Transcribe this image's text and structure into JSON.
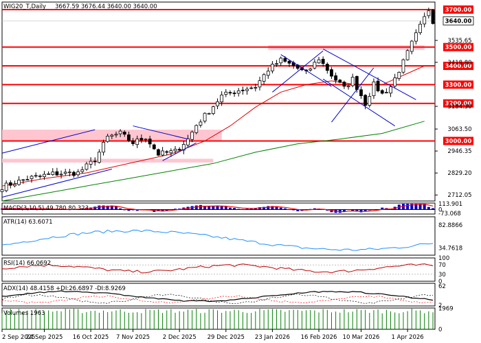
{
  "header": {
    "symbol": "WIG20_T,Daily",
    "ohlc": "3667.59 3676.44 3640.00 3640.00"
  },
  "colors": {
    "level_line": "#ff0000",
    "zone_fill": "#ffc0cb",
    "ma_fast": "#e00000",
    "ma_slow": "#008000",
    "trendline": "#0000cc",
    "macd_hist": "#0000c0",
    "macd_signal": "#ff0000",
    "atr_line": "#1e90ff",
    "rsi_line": "#c00000",
    "adx_line": "#000000",
    "di_plus": "#000000",
    "di_minus": "#ff0000",
    "volume": "#008000"
  },
  "chart_data": [
    {
      "type": "candlestick",
      "panel": "price",
      "title": "WIG20_T,Daily",
      "ylim": [
        2680,
        3740
      ],
      "y_ticks": [
        3535.65,
        3418.8,
        3184.3,
        3063.5,
        2946.35,
        2829.2,
        2712.05
      ],
      "levels": [
        {
          "value": 3700,
          "label": "3700.00"
        },
        {
          "value": 3500,
          "label": "3500.00"
        },
        {
          "value": 3400,
          "label": "3400.00"
        },
        {
          "value": 3300,
          "label": "3300.00"
        },
        {
          "value": 3200,
          "label": "3200.00"
        },
        {
          "value": 3000,
          "label": "3000.00"
        }
      ],
      "current_price": {
        "value": 3640,
        "label": "3640.00"
      },
      "x_labels": [
        "2 Sep 2025",
        "24 Sep 2025",
        "16 Oct 2025",
        "7 Nov 2025",
        "2 Dec 2025",
        "29 Dec 2025",
        "23 Jan 2026",
        "16 Feb 2026",
        "10 Mar 2026",
        "1 Apr 2026"
      ],
      "zones": [
        {
          "from_index": 0,
          "to_index": 52,
          "low": 3000,
          "high": 3060
        },
        {
          "from_index": 0,
          "to_index": 50,
          "low": 2885,
          "high": 2905
        },
        {
          "from_index": 63,
          "to_index": 100,
          "low": 3485,
          "high": 3510
        }
      ],
      "close_path": [
        [
          0,
          2755
        ],
        [
          6,
          2800
        ],
        [
          12,
          2825
        ],
        [
          18,
          2830
        ],
        [
          22,
          2900
        ],
        [
          25,
          3020
        ],
        [
          28,
          3040
        ],
        [
          31,
          2990
        ],
        [
          34,
          3020
        ],
        [
          37,
          2930
        ],
        [
          41,
          2945
        ],
        [
          44,
          3010
        ],
        [
          46,
          3085
        ],
        [
          49,
          3160
        ],
        [
          52,
          3240
        ],
        [
          56,
          3270
        ],
        [
          60,
          3290
        ],
        [
          63,
          3380
        ],
        [
          66,
          3430
        ],
        [
          69,
          3400
        ],
        [
          72,
          3360
        ],
        [
          75,
          3440
        ],
        [
          78,
          3350
        ],
        [
          81,
          3280
        ],
        [
          83,
          3330
        ],
        [
          86,
          3200
        ],
        [
          88,
          3300
        ],
        [
          90,
          3250
        ],
        [
          92,
          3290
        ],
        [
          95,
          3420
        ],
        [
          97,
          3520
        ],
        [
          99,
          3610
        ],
        [
          101,
          3700
        ],
        [
          102,
          3640
        ]
      ],
      "trendlines": [
        [
          [
            0,
            2935
          ],
          [
            22,
            3060
          ]
        ],
        [
          [
            0,
            2700
          ],
          [
            26,
            2850
          ]
        ],
        [
          [
            31,
            3080
          ],
          [
            44,
            3010
          ]
        ],
        [
          [
            38,
            2895
          ],
          [
            46,
            2990
          ]
        ],
        [
          [
            64,
            3260
          ],
          [
            76,
            3480
          ]
        ],
        [
          [
            66,
            3460
          ],
          [
            78,
            3290
          ]
        ],
        [
          [
            76,
            3490
          ],
          [
            98,
            3220
          ]
        ],
        [
          [
            76,
            3330
          ],
          [
            93,
            3080
          ]
        ],
        [
          [
            78,
            3100
          ],
          [
            88,
            3390
          ]
        ]
      ],
      "ma_fast": [
        [
          0,
          2760
        ],
        [
          10,
          2800
        ],
        [
          20,
          2830
        ],
        [
          30,
          2880
        ],
        [
          40,
          2930
        ],
        [
          48,
          3000
        ],
        [
          54,
          3080
        ],
        [
          60,
          3180
        ],
        [
          66,
          3260
        ],
        [
          72,
          3300
        ],
        [
          78,
          3320
        ],
        [
          84,
          3300
        ],
        [
          90,
          3300
        ],
        [
          96,
          3360
        ],
        [
          100,
          3400
        ]
      ],
      "ma_slow": [
        [
          0,
          2680
        ],
        [
          10,
          2720
        ],
        [
          20,
          2760
        ],
        [
          30,
          2800
        ],
        [
          40,
          2840
        ],
        [
          50,
          2880
        ],
        [
          60,
          2940
        ],
        [
          70,
          2985
        ],
        [
          80,
          3010
        ],
        [
          90,
          3040
        ],
        [
          100,
          3105
        ]
      ]
    },
    {
      "type": "bar",
      "panel": "macd",
      "title": "MACD(3,10,5) 49.780 80.323",
      "y_ticks": [
        113.901,
        0,
        -73.068
      ],
      "ylim": [
        -90,
        130
      ]
    },
    {
      "type": "line",
      "panel": "atr",
      "title": "ATR(14) 63.6071",
      "y_ticks": [
        82.8866,
        34.7618
      ],
      "ylim": [
        20,
        100
      ]
    },
    {
      "type": "line",
      "panel": "rsi",
      "title": "RSI(14) 66.0692",
      "y_ticks": [
        100,
        70,
        30,
        0
      ],
      "ylim": [
        0,
        100
      ]
    },
    {
      "type": "line",
      "panel": "adx",
      "title": "ADX(14) 48.4158 +DI:26.6897 -DI:8.9269",
      "y_ticks": [
        62,
        2
      ],
      "ylim": [
        0,
        70
      ]
    },
    {
      "type": "bar",
      "panel": "volume",
      "title": "Volumes 1963",
      "y_ticks": [
        1969,
        0
      ],
      "ylim": [
        0,
        2000
      ]
    }
  ]
}
